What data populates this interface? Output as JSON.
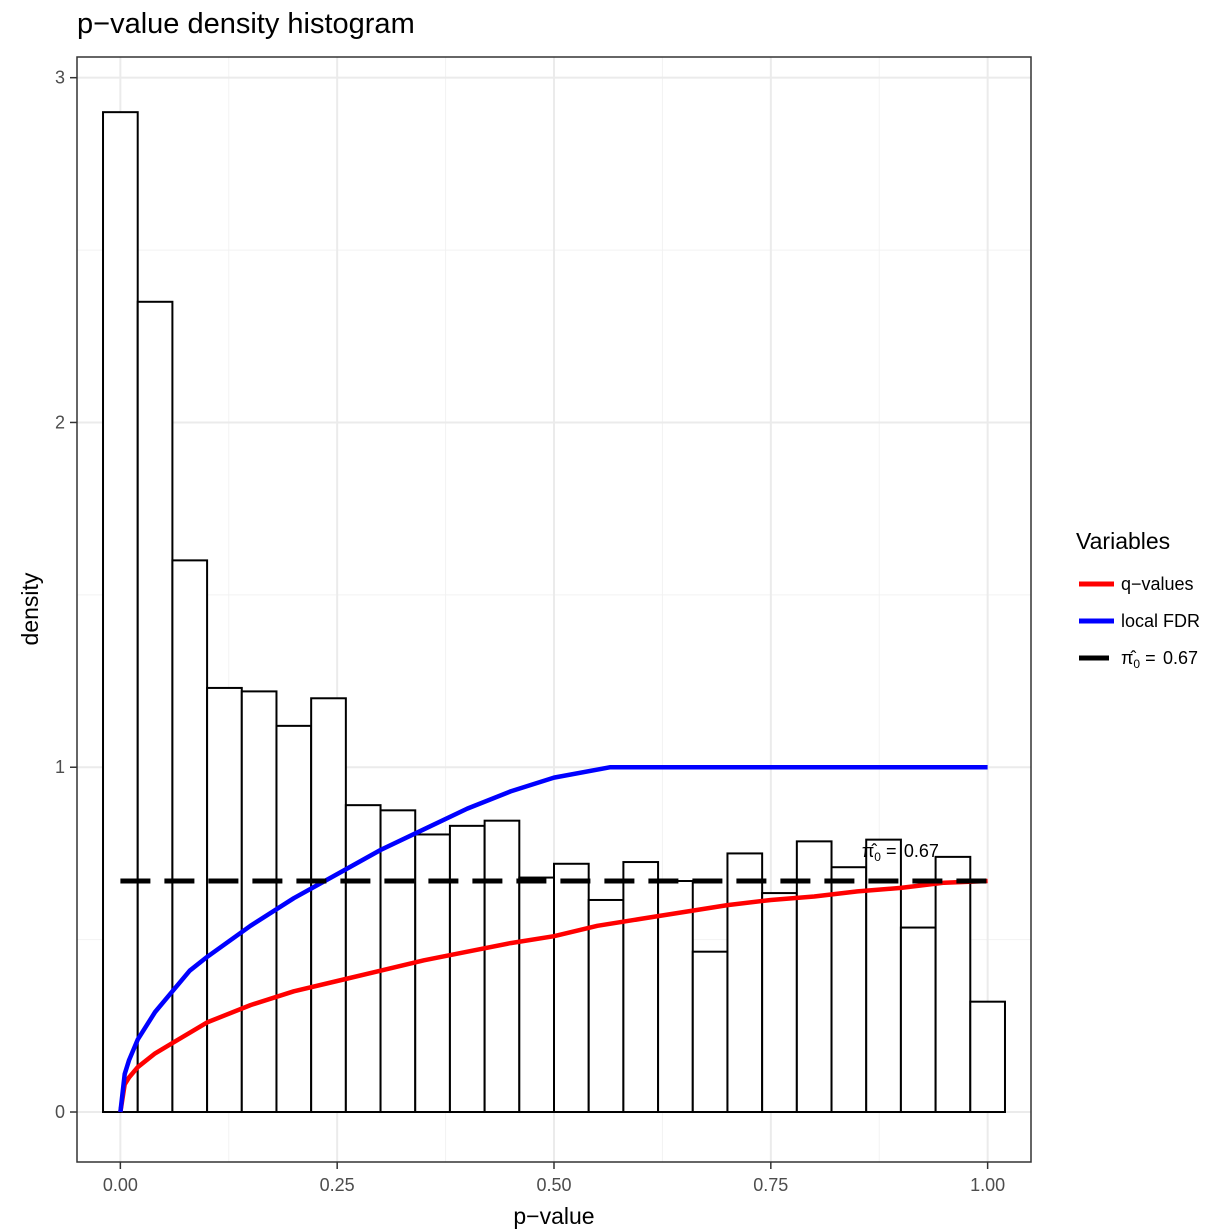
{
  "chart_data": {
    "type": "bar",
    "title": "p−value density histogram",
    "xlabel": "p−value",
    "ylabel": "density",
    "xlim": [
      -0.05,
      1.05
    ],
    "ylim": [
      -0.145,
      3.06
    ],
    "grid": true,
    "x_ticks": [
      0.0,
      0.25,
      0.5,
      0.75,
      1.0
    ],
    "x_tick_labels": [
      "0.00",
      "0.25",
      "0.50",
      "0.75",
      "1.00"
    ],
    "y_ticks": [
      0,
      1,
      2,
      3
    ],
    "y_tick_labels": [
      "0",
      "1",
      "2",
      "3"
    ],
    "histogram": {
      "bin_width": 0.04,
      "bin_centers": [
        0.0,
        0.04,
        0.08,
        0.12,
        0.16,
        0.2,
        0.24,
        0.28,
        0.32,
        0.36,
        0.4,
        0.44,
        0.48,
        0.52,
        0.56,
        0.6,
        0.64,
        0.68,
        0.72,
        0.76,
        0.8,
        0.84,
        0.88,
        0.92,
        0.96,
        1.0
      ],
      "density": [
        2.9,
        2.35,
        1.6,
        1.23,
        1.22,
        1.12,
        1.2,
        0.89,
        0.875,
        0.805,
        0.83,
        0.845,
        0.68,
        0.72,
        0.615,
        0.725,
        0.67,
        0.465,
        0.75,
        0.635,
        0.785,
        0.71,
        0.79,
        0.535,
        0.74,
        0.32
      ]
    },
    "series": [
      {
        "name": "q−values",
        "color": "#ff0000",
        "x": [
          0.0,
          0.005,
          0.01,
          0.02,
          0.04,
          0.06,
          0.1,
          0.15,
          0.2,
          0.25,
          0.3,
          0.35,
          0.4,
          0.45,
          0.5,
          0.55,
          0.6,
          0.65,
          0.7,
          0.75,
          0.8,
          0.85,
          0.9,
          0.95,
          1.0
        ],
        "y": [
          0.0,
          0.08,
          0.1,
          0.13,
          0.17,
          0.2,
          0.26,
          0.31,
          0.35,
          0.38,
          0.41,
          0.44,
          0.465,
          0.49,
          0.51,
          0.54,
          0.56,
          0.58,
          0.6,
          0.615,
          0.625,
          0.64,
          0.65,
          0.665,
          0.67
        ]
      },
      {
        "name": "local FDR",
        "color": "#0000ff",
        "x": [
          0.0,
          0.005,
          0.01,
          0.02,
          0.04,
          0.06,
          0.08,
          0.1,
          0.15,
          0.2,
          0.25,
          0.3,
          0.35,
          0.4,
          0.45,
          0.5,
          0.565,
          0.6,
          0.7,
          0.8,
          0.9,
          1.0
        ],
        "y": [
          0.0,
          0.11,
          0.15,
          0.21,
          0.29,
          0.35,
          0.41,
          0.45,
          0.54,
          0.62,
          0.69,
          0.76,
          0.82,
          0.88,
          0.93,
          0.97,
          1.0,
          1.0,
          1.0,
          1.0,
          1.0,
          1.0
        ]
      },
      {
        "name": "π̂₀ = 0.67",
        "color": "#000000",
        "dashed": true,
        "x": [
          0.0,
          1.0
        ],
        "y": [
          0.67,
          0.67
        ]
      }
    ],
    "annotation": {
      "text": "0.67",
      "x": 0.855,
      "y": 0.74
    },
    "legend": {
      "title": "Variables",
      "position": "right",
      "items": [
        {
          "label": "q−values",
          "color": "#ff0000",
          "dashed": false
        },
        {
          "label": "local FDR",
          "color": "#0000ff",
          "dashed": false
        },
        {
          "label": "0.67",
          "color": "#000000",
          "dashed": true
        }
      ]
    }
  }
}
